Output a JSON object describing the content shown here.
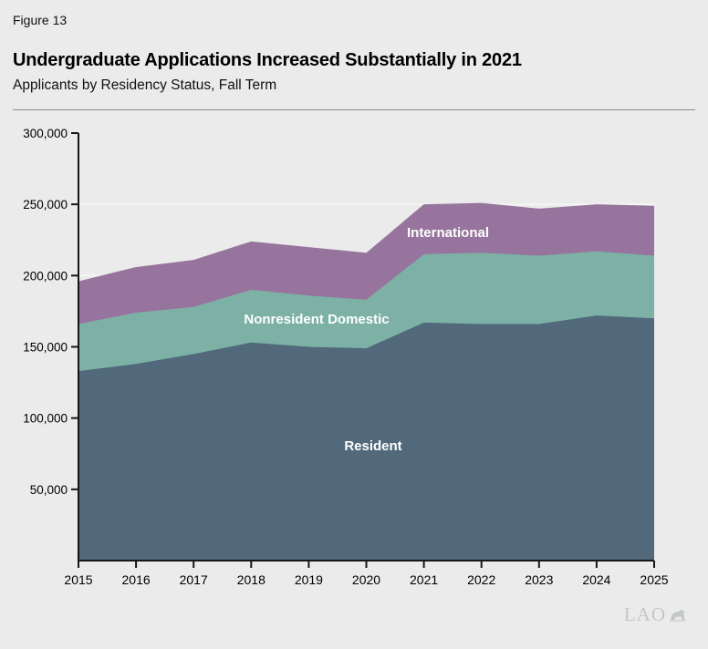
{
  "figure_label": "Figure 13",
  "title": "Undergraduate Applications Increased Substantially in 2021",
  "subtitle": "Applicants by Residency Status, Fall Term",
  "logo_text": "LAO",
  "colors": {
    "background": "#ebebeb",
    "axis": "#161616",
    "gridline": "#f7f7f7",
    "tick_label": "#000000",
    "series_label": "#ffffff",
    "logo": "#c3c7ca"
  },
  "chart_data": {
    "type": "area",
    "stacked": true,
    "title": "Undergraduate Applications Increased Substantially in 2021",
    "subtitle": "Applicants by Residency Status, Fall Term",
    "categories": [
      2015,
      2016,
      2017,
      2018,
      2019,
      2020,
      2021,
      2022,
      2023,
      2024,
      2025
    ],
    "series": [
      {
        "name": "Resident",
        "color": "#51697b",
        "values": [
          133000,
          138000,
          145000,
          153000,
          150000,
          149000,
          167000,
          166000,
          166000,
          172000,
          170000
        ]
      },
      {
        "name": "Nonresident Domestic",
        "color": "#7db1a6",
        "values": [
          33000,
          36000,
          33000,
          37000,
          36000,
          34000,
          48000,
          50000,
          48000,
          45000,
          44000
        ]
      },
      {
        "name": "International",
        "color": "#97749d",
        "values": [
          30000,
          32000,
          33000,
          34000,
          34000,
          33000,
          35000,
          35000,
          33000,
          33000,
          35000
        ]
      }
    ],
    "totals": [
      196000,
      206000,
      211000,
      224000,
      220000,
      216000,
      250000,
      251000,
      247000,
      250000,
      249000
    ],
    "xlabel": "",
    "ylabel": "",
    "ylim": [
      0,
      300000
    ],
    "y_tick_step": 50000,
    "y_tick_labels": [
      "50,000",
      "100,000",
      "150,000",
      "200,000",
      "250,000",
      "300,000"
    ],
    "grid": true,
    "legend": "inline-labels"
  }
}
